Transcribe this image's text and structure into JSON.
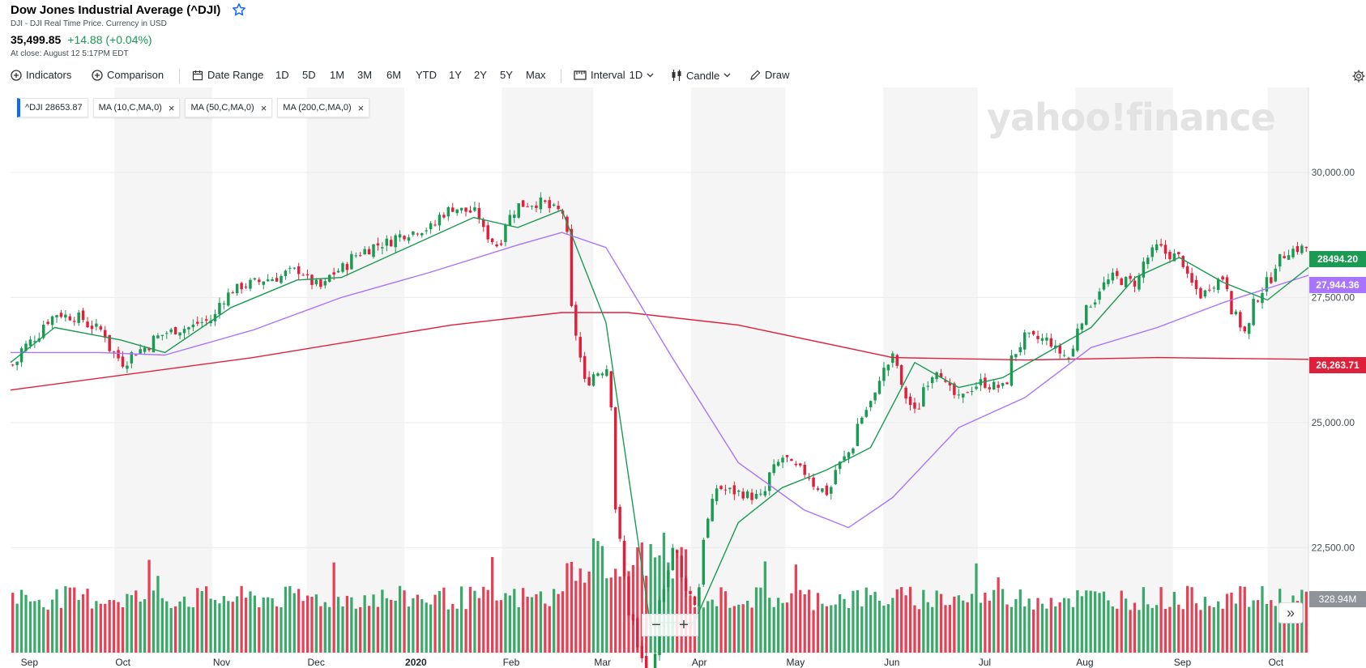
{
  "header": {
    "title": "Dow Jones Industrial Average (^DJI)",
    "subtitle": "DJI - DJI Real Time Price. Currency in USD",
    "price": "35,499.85",
    "change": "+14.88 (+0.04%)",
    "close_time": "At close: August 12 5:17PM EDT"
  },
  "toolbar": {
    "indicators": "Indicators",
    "comparison": "Comparison",
    "date_range": "Date Range",
    "ranges": [
      "1D",
      "5D",
      "1M",
      "3M",
      "6M",
      "YTD",
      "1Y",
      "2Y",
      "5Y",
      "Max"
    ],
    "interval_label": "Interval",
    "interval_value": "1D",
    "chart_type": "Candle",
    "draw": "Draw"
  },
  "legend": {
    "main": "^DJI 28653.87",
    "ma10": "MA (10,C,MA,0)",
    "ma50": "MA (50,C,MA,0)",
    "ma200": "MA (200,C,MA,0)"
  },
  "watermark": "yahoo!finance",
  "zoom": {
    "minus": "−",
    "plus": "+"
  },
  "expand_label": "»",
  "price_tags": {
    "last": "28494.20",
    "ma50": "27,944.36",
    "ma200": "26,263.71",
    "volume": "328.94M",
    "last_color": "#1a9a52",
    "ma50_color": "#a974ff",
    "ma200_color": "#e0203a",
    "volume_color": "#8e949a"
  },
  "chart_data": {
    "type": "candlestick",
    "yticks": [
      22500,
      25000,
      27500,
      30000
    ],
    "ytick_labels": [
      "22,500.00",
      "25,000.00",
      "27,500.00",
      "30,000.00"
    ],
    "ylim": [
      20400,
      31700
    ],
    "x_start": "2019-08-29",
    "x_end": "2020-10-14",
    "month_ticks": [
      {
        "label": "Sep",
        "date": "2019-09-01"
      },
      {
        "label": "Oct",
        "date": "2019-10-01"
      },
      {
        "label": "Nov",
        "date": "2019-11-01"
      },
      {
        "label": "Dec",
        "date": "2019-12-01"
      },
      {
        "label": "2020",
        "date": "2020-01-01"
      },
      {
        "label": "Feb",
        "date": "2020-02-01"
      },
      {
        "label": "Mar",
        "date": "2020-03-01"
      },
      {
        "label": "Apr",
        "date": "2020-04-01"
      },
      {
        "label": "May",
        "date": "2020-05-01"
      },
      {
        "label": "Jun",
        "date": "2020-06-01"
      },
      {
        "label": "Jul",
        "date": "2020-07-01"
      },
      {
        "label": "Aug",
        "date": "2020-08-01"
      },
      {
        "label": "Sep",
        "date": "2020-09-01"
      },
      {
        "label": "Oct",
        "date": "2020-10-01"
      }
    ],
    "close_series": [
      [
        "2019-08-29",
        26150
      ],
      [
        "2019-09-05",
        26700
      ],
      [
        "2019-09-12",
        27180
      ],
      [
        "2019-09-19",
        27100
      ],
      [
        "2019-09-26",
        26850
      ],
      [
        "2019-10-03",
        26200
      ],
      [
        "2019-10-10",
        26500
      ],
      [
        "2019-10-17",
        26800
      ],
      [
        "2019-10-24",
        26900
      ],
      [
        "2019-10-31",
        27050
      ],
      [
        "2019-11-07",
        27650
      ],
      [
        "2019-11-14",
        27800
      ],
      [
        "2019-11-21",
        27900
      ],
      [
        "2019-11-28",
        28050
      ],
      [
        "2019-12-05",
        27700
      ],
      [
        "2019-12-12",
        28100
      ],
      [
        "2019-12-19",
        28450
      ],
      [
        "2019-12-26",
        28600
      ],
      [
        "2020-01-02",
        28800
      ],
      [
        "2020-01-09",
        28900
      ],
      [
        "2020-01-16",
        29300
      ],
      [
        "2020-01-23",
        29200
      ],
      [
        "2020-01-30",
        28550
      ],
      [
        "2020-02-06",
        29350
      ],
      [
        "2020-02-13",
        29400
      ],
      [
        "2020-02-20",
        29200
      ],
      [
        "2020-02-27",
        25800
      ],
      [
        "2020-03-05",
        26100
      ],
      [
        "2020-03-12",
        21200
      ],
      [
        "2020-03-19",
        19900
      ],
      [
        "2020-03-26",
        22500
      ],
      [
        "2020-04-02",
        21400
      ],
      [
        "2020-04-09",
        23700
      ],
      [
        "2020-04-16",
        23600
      ],
      [
        "2020-04-23",
        23500
      ],
      [
        "2020-04-30",
        24300
      ],
      [
        "2020-05-07",
        24000
      ],
      [
        "2020-05-14",
        23600
      ],
      [
        "2020-05-21",
        24400
      ],
      [
        "2020-05-28",
        25400
      ],
      [
        "2020-06-04",
        26300
      ],
      [
        "2020-06-11",
        25200
      ],
      [
        "2020-06-18",
        26100
      ],
      [
        "2020-06-25",
        25450
      ],
      [
        "2020-07-02",
        25800
      ],
      [
        "2020-07-09",
        25700
      ],
      [
        "2020-07-16",
        26700
      ],
      [
        "2020-07-23",
        26650
      ],
      [
        "2020-07-30",
        26300
      ],
      [
        "2020-08-06",
        27400
      ],
      [
        "2020-08-13",
        27900
      ],
      [
        "2020-08-20",
        27800
      ],
      [
        "2020-08-27",
        28500
      ],
      [
        "2020-09-03",
        28300
      ],
      [
        "2020-09-10",
        27550
      ],
      [
        "2020-09-17",
        27900
      ],
      [
        "2020-09-24",
        26800
      ],
      [
        "2020-10-01",
        27800
      ],
      [
        "2020-10-08",
        28450
      ],
      [
        "2020-10-14",
        28494
      ]
    ],
    "ma10_series": [
      [
        "2019-08-29",
        26200
      ],
      [
        "2019-09-12",
        26900
      ],
      [
        "2019-10-03",
        26650
      ],
      [
        "2019-10-17",
        26400
      ],
      [
        "2019-11-07",
        27300
      ],
      [
        "2019-11-28",
        27850
      ],
      [
        "2019-12-12",
        27900
      ],
      [
        "2020-01-09",
        28700
      ],
      [
        "2020-01-23",
        29100
      ],
      [
        "2020-02-06",
        28900
      ],
      [
        "2020-02-20",
        29250
      ],
      [
        "2020-03-05",
        27000
      ],
      [
        "2020-03-19",
        21000
      ],
      [
        "2020-04-02",
        21000
      ],
      [
        "2020-04-16",
        23000
      ],
      [
        "2020-04-30",
        23700
      ],
      [
        "2020-05-14",
        24050
      ],
      [
        "2020-05-28",
        24500
      ],
      [
        "2020-06-11",
        26200
      ],
      [
        "2020-06-25",
        25700
      ],
      [
        "2020-07-09",
        25900
      ],
      [
        "2020-07-23",
        26400
      ],
      [
        "2020-08-06",
        26900
      ],
      [
        "2020-08-20",
        27900
      ],
      [
        "2020-09-03",
        28300
      ],
      [
        "2020-09-17",
        27800
      ],
      [
        "2020-10-01",
        27450
      ],
      [
        "2020-10-14",
        28100
      ]
    ],
    "ma50_series": [
      [
        "2019-08-29",
        26400
      ],
      [
        "2019-09-26",
        26400
      ],
      [
        "2019-10-17",
        26350
      ],
      [
        "2019-11-14",
        26850
      ],
      [
        "2019-12-12",
        27500
      ],
      [
        "2020-01-09",
        28000
      ],
      [
        "2020-02-06",
        28550
      ],
      [
        "2020-02-20",
        28800
      ],
      [
        "2020-03-05",
        28500
      ],
      [
        "2020-03-26",
        26300
      ],
      [
        "2020-04-16",
        24200
      ],
      [
        "2020-05-07",
        23250
      ],
      [
        "2020-05-21",
        22900
      ],
      [
        "2020-06-04",
        23500
      ],
      [
        "2020-06-25",
        24900
      ],
      [
        "2020-07-16",
        25500
      ],
      [
        "2020-08-06",
        26500
      ],
      [
        "2020-08-27",
        26900
      ],
      [
        "2020-09-17",
        27400
      ],
      [
        "2020-10-14",
        27944
      ]
    ],
    "ma200_series": [
      [
        "2019-08-29",
        25650
      ],
      [
        "2019-11-14",
        26300
      ],
      [
        "2020-01-16",
        26950
      ],
      [
        "2020-02-20",
        27200
      ],
      [
        "2020-03-12",
        27200
      ],
      [
        "2020-04-16",
        26950
      ],
      [
        "2020-06-04",
        26300
      ],
      [
        "2020-07-16",
        26250
      ],
      [
        "2020-08-27",
        26300
      ],
      [
        "2020-10-14",
        26264
      ]
    ],
    "series_colors": {
      "up": "#1a9a52",
      "down": "#e0203a",
      "ma10": "#1a9a52",
      "ma50": "#a974ff",
      "ma200": "#e0203a"
    },
    "grid": true,
    "shaded_alternate_months": true
  }
}
